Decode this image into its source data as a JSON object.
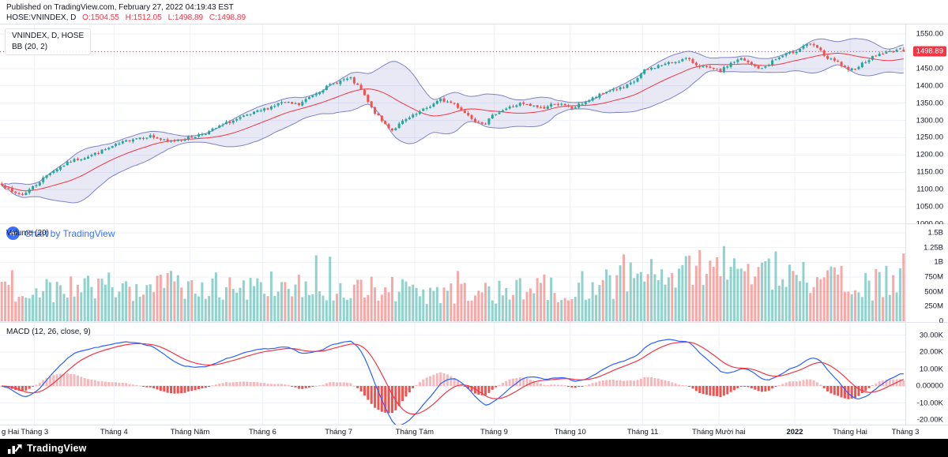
{
  "header": {
    "published_line": "Published on TradingView.com, February 27, 2022 04:19:43 EST",
    "symbol_line_prefix": "HOSE:VNINDEX, D",
    "ohlc": {
      "o": "O:1504.55",
      "h": "H:1512.05",
      "l": "L:1498.89",
      "c": "C:1498.89"
    }
  },
  "price_panel": {
    "legend_line1": "VNINDEX, D, HOSE",
    "legend_line2": "BB (20, 2)",
    "watermark": "Chart by TradingView",
    "last_price_label": "1498.89",
    "axis_ticks": [
      {
        "label": "1550.00",
        "value": 1550
      },
      {
        "label": "1500.00",
        "value": 1500
      },
      {
        "label": "1450.00",
        "value": 1450
      },
      {
        "label": "1400.00",
        "value": 1400
      },
      {
        "label": "1350.00",
        "value": 1350
      },
      {
        "label": "1300.00",
        "value": 1300
      },
      {
        "label": "1250.00",
        "value": 1250
      },
      {
        "label": "1200.00",
        "value": 1200
      },
      {
        "label": "1150.00",
        "value": 1150
      },
      {
        "label": "1100.00",
        "value": 1100
      },
      {
        "label": "1050.00",
        "value": 1050
      },
      {
        "label": "1000.00",
        "value": 1000
      }
    ]
  },
  "volume_panel": {
    "legend": "Volume (20)",
    "axis_ticks": [
      {
        "label": "1.5B",
        "value": 1500
      },
      {
        "label": "1.25B",
        "value": 1250
      },
      {
        "label": "1B",
        "value": 1000
      },
      {
        "label": "750M",
        "value": 750
      },
      {
        "label": "500M",
        "value": 500
      },
      {
        "label": "250M",
        "value": 250
      },
      {
        "label": "0",
        "value": 0
      }
    ]
  },
  "macd_panel": {
    "legend": "MACD (12, 26, close, 9)",
    "axis_ticks": [
      {
        "label": "30.00K",
        "value": 30000
      },
      {
        "label": "20.00K",
        "value": 20000
      },
      {
        "label": "10.00K",
        "value": 10000
      },
      {
        "label": "0.00000",
        "value": 0
      },
      {
        "label": "-10.00K",
        "value": -10000
      },
      {
        "label": "-20.00K",
        "value": -20000
      }
    ]
  },
  "footer": {
    "brand": "TradingView"
  },
  "colors": {
    "up": "#26a69a",
    "down": "#ef5350",
    "bb_fill": "rgba(126,131,199,0.18)",
    "bb_line": "#7e83c7",
    "bb_basis": "#f23645",
    "macd_line": "#2962ff",
    "signal_line": "#f23645",
    "hist_pos": "#f5b8bc",
    "hist_neg": "#ef5350",
    "last_price": "#f23645",
    "grid": "#eef1f8",
    "grid_zero": "#e0e3eb",
    "axis_text": "#131722",
    "link_blue": "#2962ff"
  },
  "chart_data": {
    "type": "candlestick",
    "symbol": "HOSE:VNINDEX",
    "interval": "D",
    "title": "VNINDEX, D, HOSE",
    "indicators": [
      "BB (20, 2)",
      "Volume (20)",
      "MACD (12, 26, close, 9)"
    ],
    "last_ohlc": {
      "open": 1504.55,
      "high": 1512.05,
      "low": 1498.89,
      "close": 1498.89
    },
    "price_axis_range": [
      1000,
      1577
    ],
    "volume_axis_range_millions": [
      0,
      1650
    ],
    "macd_axis_range": [
      -22800,
      37200
    ],
    "num_candles": 262,
    "render_seed": 7,
    "close_anchors": [
      [
        0,
        1118
      ],
      [
        3,
        1092
      ],
      [
        6,
        1086
      ],
      [
        10,
        1115
      ],
      [
        14,
        1150
      ],
      [
        20,
        1182
      ],
      [
        26,
        1200
      ],
      [
        33,
        1228
      ],
      [
        38,
        1248
      ],
      [
        43,
        1255
      ],
      [
        48,
        1238
      ],
      [
        52,
        1246
      ],
      [
        55,
        1252
      ],
      [
        60,
        1268
      ],
      [
        65,
        1292
      ],
      [
        70,
        1310
      ],
      [
        76,
        1332
      ],
      [
        81,
        1352
      ],
      [
        86,
        1345
      ],
      [
        90,
        1374
      ],
      [
        95,
        1402
      ],
      [
        99,
        1418
      ],
      [
        101,
        1420
      ],
      [
        104,
        1388
      ],
      [
        107,
        1335
      ],
      [
        110,
        1298
      ],
      [
        113,
        1272
      ],
      [
        116,
        1296
      ],
      [
        120,
        1318
      ],
      [
        124,
        1342
      ],
      [
        127,
        1360
      ],
      [
        131,
        1348
      ],
      [
        134,
        1322
      ],
      [
        137,
        1300
      ],
      [
        140,
        1292
      ],
      [
        143,
        1322
      ],
      [
        147,
        1338
      ],
      [
        150,
        1348
      ],
      [
        153,
        1342
      ],
      [
        157,
        1336
      ],
      [
        160,
        1350
      ],
      [
        163,
        1342
      ],
      [
        165,
        1334
      ],
      [
        168,
        1350
      ],
      [
        172,
        1368
      ],
      [
        176,
        1388
      ],
      [
        180,
        1394
      ],
      [
        183,
        1412
      ],
      [
        186,
        1444
      ],
      [
        190,
        1458
      ],
      [
        194,
        1468
      ],
      [
        198,
        1478
      ],
      [
        201,
        1462
      ],
      [
        204,
        1452
      ],
      [
        208,
        1442
      ],
      [
        211,
        1466
      ],
      [
        214,
        1478
      ],
      [
        217,
        1460
      ],
      [
        220,
        1448
      ],
      [
        223,
        1472
      ],
      [
        226,
        1486
      ],
      [
        230,
        1502
      ],
      [
        233,
        1522
      ],
      [
        236,
        1510
      ],
      [
        239,
        1478
      ],
      [
        242,
        1468
      ],
      [
        245,
        1442
      ],
      [
        248,
        1458
      ],
      [
        251,
        1478
      ],
      [
        254,
        1492
      ],
      [
        257,
        1498
      ],
      [
        259,
        1505
      ],
      [
        260,
        1504
      ],
      [
        261,
        1498.89
      ]
    ],
    "volume_anchors_millions": [
      [
        0,
        520
      ],
      [
        15,
        560
      ],
      [
        33,
        600
      ],
      [
        50,
        640
      ],
      [
        65,
        620
      ],
      [
        76,
        640
      ],
      [
        90,
        560
      ],
      [
        101,
        520
      ],
      [
        110,
        560
      ],
      [
        120,
        500
      ],
      [
        135,
        470
      ],
      [
        143,
        520
      ],
      [
        155,
        560
      ],
      [
        165,
        600
      ],
      [
        175,
        640
      ],
      [
        186,
        760
      ],
      [
        195,
        860
      ],
      [
        204,
        900
      ],
      [
        210,
        940
      ],
      [
        216,
        860
      ],
      [
        222,
        820
      ],
      [
        228,
        900
      ],
      [
        234,
        860
      ],
      [
        240,
        800
      ],
      [
        246,
        560
      ],
      [
        252,
        620
      ],
      [
        258,
        700
      ],
      [
        261,
        1150
      ]
    ],
    "months": [
      {
        "label": "g Hai",
        "day": 0
      },
      {
        "label": "Tháng 3",
        "day": 10
      },
      {
        "label": "Tháng 4",
        "day": 33
      },
      {
        "label": "Tháng Năm",
        "day": 55
      },
      {
        "label": "Tháng 6",
        "day": 76
      },
      {
        "label": "Tháng 7",
        "day": 98
      },
      {
        "label": "Tháng Tám",
        "day": 120
      },
      {
        "label": "Tháng 9",
        "day": 143
      },
      {
        "label": "Tháng 10",
        "day": 165
      },
      {
        "label": "Tháng 11",
        "day": 186
      },
      {
        "label": "Tháng Mười hai",
        "day": 208
      },
      {
        "label": "2022",
        "day": 230,
        "bold": true
      },
      {
        "label": "Tháng Hai",
        "day": 246
      },
      {
        "label": "Tháng 3",
        "day": 262
      }
    ]
  }
}
